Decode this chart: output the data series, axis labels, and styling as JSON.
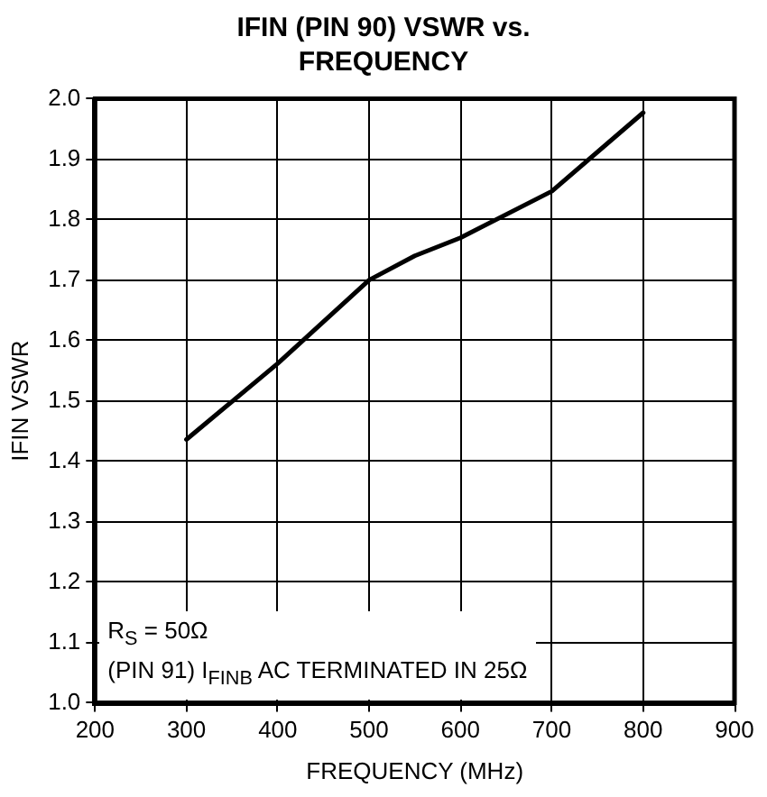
{
  "chart_data": {
    "type": "line",
    "title": "IFIN (PIN 90) VSWR vs. FREQUENCY",
    "xlabel": "FREQUENCY (MHz)",
    "ylabel": "IFIN VSWR",
    "x": [
      300,
      400,
      500,
      550,
      600,
      700,
      800
    ],
    "series": [
      {
        "color": "#000000",
        "values": [
          1.436,
          1.562,
          1.7,
          1.74,
          1.77,
          1.847,
          1.977
        ]
      }
    ],
    "xlim": [
      200,
      900
    ],
    "xticks": [
      200,
      300,
      400,
      500,
      600,
      700,
      800,
      900
    ],
    "ylim": [
      1.0,
      2.0
    ],
    "yticks": [
      {
        "value": 1,
        "label": "1.0"
      },
      1.1,
      1.2,
      1.3,
      1.4,
      1.5,
      1.6,
      1.7,
      1.8,
      1.9,
      {
        "value": 2,
        "label": "2.0"
      }
    ],
    "grid": true,
    "legend": false,
    "marker": "none",
    "line_style": "solid",
    "annotations": [
      "R$_{S}$ = 50Ω",
      "(PIN 91) I$_{FINB}$ AC TERMINATED IN 25Ω"
    ]
  }
}
